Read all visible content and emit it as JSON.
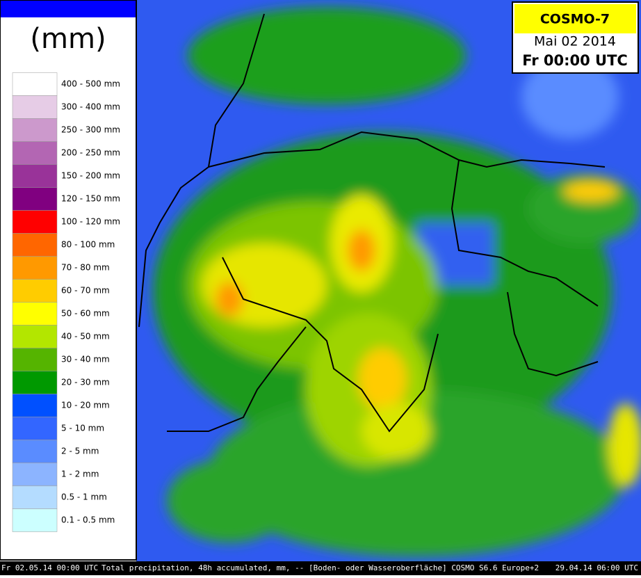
{
  "legend": {
    "unit": "(mm)",
    "items": [
      {
        "label": "400 - 500 mm",
        "color": "#ffffff"
      },
      {
        "label": "300 - 400 mm",
        "color": "#e6cce6"
      },
      {
        "label": "250 - 300 mm",
        "color": "#cc99cc"
      },
      {
        "label": "200 - 250 mm",
        "color": "#b366b3"
      },
      {
        "label": "150 - 200 mm",
        "color": "#993399"
      },
      {
        "label": "120 - 150 mm",
        "color": "#800080"
      },
      {
        "label": "100 - 120 mm",
        "color": "#ff0000"
      },
      {
        "label": "80 - 100 mm",
        "color": "#ff6600"
      },
      {
        "label": "70 - 80 mm",
        "color": "#ff9900"
      },
      {
        "label": "60 - 70 mm",
        "color": "#ffcc00"
      },
      {
        "label": "50 - 60 mm",
        "color": "#ffff00"
      },
      {
        "label": "40 - 50 mm",
        "color": "#b3e600"
      },
      {
        "label": "30 - 40 mm",
        "color": "#55b400"
      },
      {
        "label": "20 - 30 mm",
        "color": "#009900"
      },
      {
        "label": "10 - 20 mm",
        "color": "#0050ff"
      },
      {
        "label": "5 - 10 mm",
        "color": "#3366ff"
      },
      {
        "label": "2 - 5 mm",
        "color": "#5a8cff"
      },
      {
        "label": "1 - 2 mm",
        "color": "#8cb4ff"
      },
      {
        "label": "0.5 - 1 mm",
        "color": "#b4dcff"
      },
      {
        "label": "0.1 - 0.5 mm",
        "color": "#ccffff"
      }
    ]
  },
  "header": {
    "model": "COSMO-7",
    "date": "Mai 02 2014",
    "time": "Fr 00:00 UTC"
  },
  "footer": {
    "valid": "Fr 02.05.14 00:00 UTC",
    "description": "Total precipitation, 48h accumulated, mm, -- [Boden- oder Wasseroberfläche] COSMO S6.6 Europe+2",
    "run": "29.04.14 06:00 UTC"
  }
}
